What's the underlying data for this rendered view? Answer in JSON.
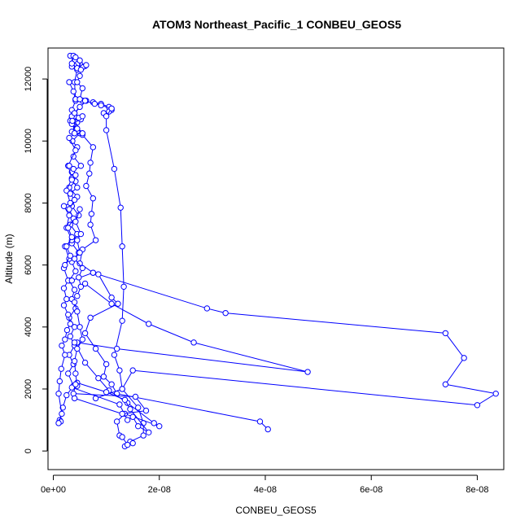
{
  "chart_data": {
    "type": "line",
    "title": "ATOM3 Northeast_Pacific_1 CONBEU_GEOS5",
    "xlabel": "CONBEU_GEOS5",
    "ylabel": "Altitude (m)",
    "xlim": [
      -1e-09,
      8.5e-08
    ],
    "ylim": [
      -600,
      13000
    ],
    "x_ticks": [
      0,
      2e-08,
      4e-08,
      6e-08,
      8e-08
    ],
    "x_tick_labels": [
      "0e+00",
      "2e-08",
      "4e-08",
      "6e-08",
      "8e-08"
    ],
    "y_ticks": [
      0,
      2000,
      4000,
      6000,
      8000,
      10000,
      12000
    ],
    "y_tick_labels": [
      "0",
      "2000",
      "4000",
      "6000",
      "8000",
      "10000",
      "12000"
    ],
    "grid": false,
    "marker": "open-circle",
    "series_color": "#0000ff",
    "series": [
      {
        "points": [
          [
            3.2e-09,
            12750
          ],
          [
            4e-09,
            12600
          ],
          [
            5e-09,
            12450
          ],
          [
            6e-09,
            12420
          ],
          [
            5.5e-09,
            12380
          ],
          [
            4.5e-09,
            12300
          ],
          [
            4e-09,
            11900
          ],
          [
            4.2e-09,
            11350
          ],
          [
            5.5e-09,
            11300
          ],
          [
            6.2e-09,
            11300
          ],
          [
            4e-09,
            10900
          ],
          [
            3.5e-09,
            10750
          ],
          [
            4.5e-09,
            10600
          ],
          [
            3.5e-09,
            10300
          ],
          [
            5e-09,
            10250
          ],
          [
            3.6e-09,
            10000
          ],
          [
            4.5e-09,
            9800
          ],
          [
            3.8e-09,
            9500
          ],
          [
            5.2e-09,
            9200
          ],
          [
            3.5e-09,
            9000
          ],
          [
            4.2e-09,
            8700
          ],
          [
            3e-09,
            8500
          ],
          [
            4.5e-09,
            8200
          ],
          [
            3.5e-09,
            7900
          ],
          [
            4.8e-09,
            7600
          ],
          [
            3.2e-09,
            7300
          ],
          [
            4.5e-09,
            7000
          ],
          [
            3.5e-09,
            6700
          ],
          [
            4.8e-09,
            6400
          ],
          [
            3.5e-09,
            6100
          ],
          [
            4.2e-09,
            5800
          ],
          [
            3e-09,
            5500
          ],
          [
            4e-09,
            5200
          ],
          [
            3.5e-09,
            4900
          ],
          [
            4.2e-09,
            4600
          ],
          [
            3e-09,
            4300
          ],
          [
            4e-09,
            4000
          ],
          [
            3.2e-09,
            3700
          ],
          [
            4e-09,
            3400
          ],
          [
            3e-09,
            3100
          ],
          [
            3.8e-09,
            2800
          ],
          [
            2.8e-09,
            2500
          ],
          [
            3.8e-09,
            2100
          ],
          [
            2.5e-09,
            1800
          ],
          [
            1.8e-09,
            1400
          ],
          [
            1.2e-09,
            1000
          ],
          [
            1.4e-09,
            950
          ]
        ]
      },
      {
        "points": [
          [
            3e-09,
            11900
          ],
          [
            3.8e-09,
            11600
          ],
          [
            4.2e-09,
            11300
          ],
          [
            3.5e-09,
            11000
          ],
          [
            4e-09,
            10800
          ],
          [
            3.2e-09,
            10650
          ],
          [
            4.5e-09,
            10300
          ],
          [
            3e-09,
            10100
          ],
          [
            4.2e-09,
            9700
          ],
          [
            2.8e-09,
            9200
          ],
          [
            3.5e-09,
            8800
          ],
          [
            2.5e-09,
            8400
          ],
          [
            3.2e-09,
            8000
          ],
          [
            2e-09,
            7900
          ],
          [
            3e-09,
            7600
          ],
          [
            2.5e-09,
            7200
          ],
          [
            3.5e-09,
            6800
          ],
          [
            2.2e-09,
            6600
          ],
          [
            3e-09,
            6200
          ],
          [
            2e-09,
            5900
          ],
          [
            2.8e-09,
            5500
          ],
          [
            2e-09,
            5250
          ],
          [
            2.5e-09,
            4900
          ],
          [
            2e-09,
            4700
          ],
          [
            2.8e-09,
            4400
          ],
          [
            3.2e-09,
            4100
          ],
          [
            2.6e-09,
            3900
          ],
          [
            2.2e-09,
            3600
          ],
          [
            1.6e-09,
            3400
          ],
          [
            2.2e-09,
            3100
          ],
          [
            1.5e-09,
            2650
          ],
          [
            1.2e-09,
            2250
          ],
          [
            1e-09,
            1850
          ],
          [
            1.6e-09,
            1200
          ],
          [
            1e-09,
            900
          ]
        ]
      },
      {
        "points": [
          [
            6.2e-09,
            12450
          ],
          [
            5e-09,
            12500
          ],
          [
            4.5e-09,
            12480
          ],
          [
            4e-09,
            12420
          ],
          [
            3.5e-09,
            12400
          ]
        ]
      },
      {
        "points": [
          [
            7.5e-09,
            11250
          ],
          [
            9e-09,
            11200
          ],
          [
            1.05e-08,
            11100
          ],
          [
            1.1e-08,
            11000
          ],
          [
            1.05e-08,
            10950
          ],
          [
            9.5e-09,
            10900
          ]
        ]
      },
      {
        "points": [
          [
            4.2e-09,
            11350
          ],
          [
            6e-09,
            11300
          ],
          [
            7.8e-09,
            11200
          ],
          [
            9e-09,
            11150
          ],
          [
            1.1e-08,
            11050
          ],
          [
            1e-08,
            10800
          ],
          [
            1e-08,
            10350
          ],
          [
            1.15e-08,
            9100
          ],
          [
            1.27e-08,
            7850
          ],
          [
            1.3e-08,
            6600
          ],
          [
            1.33e-08,
            5300
          ],
          [
            1.3e-08,
            4200
          ],
          [
            1.15e-08,
            3100
          ],
          [
            1.25e-08,
            2600
          ],
          [
            1.3e-08,
            2000
          ],
          [
            1.6e-08,
            1400
          ],
          [
            1.7e-08,
            900
          ],
          [
            1.7e-08,
            500
          ],
          [
            1.45e-08,
            300
          ],
          [
            1.35e-08,
            150
          ]
        ]
      },
      {
        "points": [
          [
            3.5e-09,
            10800
          ],
          [
            5.5e-09,
            10200
          ],
          [
            7.5e-09,
            9800
          ],
          [
            7e-09,
            9300
          ],
          [
            6.8e-09,
            8950
          ],
          [
            6.2e-09,
            8550
          ],
          [
            7.5e-09,
            8150
          ],
          [
            7.2e-09,
            7650
          ],
          [
            7e-09,
            7300
          ],
          [
            8e-09,
            6800
          ],
          [
            5.5e-09,
            6500
          ],
          [
            5e-09,
            6050
          ],
          [
            7.5e-09,
            5750
          ],
          [
            3.5e-09,
            5500
          ]
        ]
      },
      {
        "points": [
          [
            7.5e-09,
            5750
          ],
          [
            2.9e-08,
            4600
          ],
          [
            3.25e-08,
            4450
          ],
          [
            7.4e-08,
            3800
          ],
          [
            7.75e-08,
            3000
          ],
          [
            7.4e-08,
            2150
          ],
          [
            8.35e-08,
            1850
          ],
          [
            8e-08,
            1480
          ],
          [
            1.5e-08,
            2600
          ],
          [
            1.3e-08,
            2000
          ],
          [
            8e-09,
            1700
          ]
        ]
      },
      {
        "points": [
          [
            6e-09,
            5400
          ],
          [
            1.1e-08,
            4750
          ],
          [
            1.8e-08,
            4100
          ],
          [
            2.65e-08,
            3500
          ],
          [
            4.8e-08,
            2550
          ],
          [
            1.2e-08,
            3300
          ],
          [
            4.5e-09,
            3500
          ]
        ]
      },
      {
        "points": [
          [
            8.5e-09,
            5700
          ],
          [
            1.1e-08,
            4950
          ],
          [
            1.22e-08,
            4750
          ],
          [
            7e-09,
            4300
          ],
          [
            6e-09,
            3800
          ],
          [
            8e-09,
            3300
          ],
          [
            1e-08,
            2800
          ],
          [
            9.5e-09,
            2400
          ],
          [
            1.1e-08,
            2150
          ],
          [
            1.2e-08,
            1850
          ],
          [
            3.9e-08,
            950
          ],
          [
            4.05e-08,
            700
          ]
        ]
      },
      {
        "points": [
          [
            4e-09,
            3500
          ],
          [
            6e-09,
            2850
          ],
          [
            8.5e-09,
            2350
          ],
          [
            1.05e-08,
            1950
          ],
          [
            1.4e-08,
            1550
          ],
          [
            1.9e-08,
            900
          ],
          [
            2e-08,
            800
          ],
          [
            1.35e-08,
            1200
          ],
          [
            1.2e-08,
            950
          ],
          [
            1.25e-08,
            500
          ],
          [
            1.3e-08,
            450
          ],
          [
            1.4e-08,
            200
          ],
          [
            1.5e-08,
            250
          ]
        ]
      },
      {
        "points": [
          [
            4.5e-09,
            2200
          ],
          [
            1e-08,
            1900
          ],
          [
            1.35e-08,
            1650
          ],
          [
            1.45e-08,
            1350
          ],
          [
            1.8e-08,
            600
          ],
          [
            1.6e-08,
            800
          ],
          [
            1.5e-08,
            1100
          ],
          [
            1.4e-08,
            1000
          ],
          [
            1.25e-08,
            1500
          ],
          [
            3.5e-09,
            2050
          ]
        ]
      },
      {
        "points": [
          [
            4e-09,
            4800
          ],
          [
            4.5e-09,
            4500
          ],
          [
            5e-09,
            4000
          ],
          [
            5.5e-09,
            3600
          ],
          [
            4.5e-09,
            3300
          ],
          [
            4e-09,
            2900
          ],
          [
            4.2e-09,
            2500
          ],
          [
            4.5e-09,
            2100
          ],
          [
            4.2e-09,
            2150
          ],
          [
            3.8e-09,
            1850
          ],
          [
            1.55e-08,
            1750
          ],
          [
            1.75e-08,
            1300
          ],
          [
            1.3e-08,
            1200
          ],
          [
            4e-09,
            1700
          ]
        ]
      },
      {
        "points": [
          [
            5e-09,
            11100
          ],
          [
            4e-09,
            10900
          ],
          [
            5.2e-09,
            10700
          ],
          [
            3.5e-09,
            10550
          ],
          [
            4.5e-09,
            10400
          ],
          [
            5.5e-09,
            10250
          ],
          [
            4e-09,
            10250
          ],
          [
            3.6e-09,
            10650
          ],
          [
            4.8e-09,
            10750
          ],
          [
            5.5e-09,
            10800
          ]
        ]
      },
      {
        "points": [
          [
            4.5e-09,
            12350
          ],
          [
            3.5e-09,
            12500
          ],
          [
            3.8e-09,
            12750
          ],
          [
            4.2e-09,
            12700
          ],
          [
            5e-09,
            12600
          ],
          [
            5.2e-09,
            12300
          ],
          [
            5e-09,
            12100
          ],
          [
            4.5e-09,
            11900
          ],
          [
            5.5e-09,
            11700
          ],
          [
            5e-09,
            11350
          ]
        ]
      },
      {
        "points": [
          [
            3e-09,
            9200
          ],
          [
            3.8e-09,
            9100
          ],
          [
            4.2e-09,
            8900
          ],
          [
            3.5e-09,
            8750
          ],
          [
            4.5e-09,
            8500
          ],
          [
            3.2e-09,
            8300
          ],
          [
            4e-09,
            8100
          ],
          [
            3e-09,
            7800
          ],
          [
            3.8e-09,
            7500
          ],
          [
            2.8e-09,
            7200
          ],
          [
            3.5e-09,
            6900
          ],
          [
            2.5e-09,
            6600
          ],
          [
            3.2e-09,
            6300
          ],
          [
            2.2e-09,
            6000
          ]
        ]
      },
      {
        "points": [
          [
            5e-09,
            7800
          ],
          [
            4.2e-09,
            7400
          ],
          [
            5.2e-09,
            7000
          ],
          [
            4.5e-09,
            6800
          ],
          [
            5e-09,
            6400
          ],
          [
            4e-09,
            6200
          ],
          [
            5.5e-09,
            5900
          ],
          [
            4.8e-09,
            5600
          ],
          [
            5.2e-09,
            5300
          ],
          [
            4.5e-09,
            5000
          ]
        ]
      }
    ]
  }
}
